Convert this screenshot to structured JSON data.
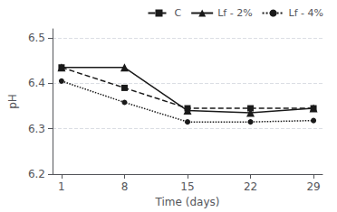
{
  "chart_data": {
    "type": "line",
    "xlabel": "Time (days)",
    "ylabel": "pH",
    "x": [
      1,
      8,
      15,
      22,
      29
    ],
    "series": [
      {
        "name": "C",
        "color": "#1a1a1a",
        "marker": "square",
        "line_style": "dashed",
        "values": [
          6.435,
          6.39,
          6.345,
          6.345,
          6.345
        ]
      },
      {
        "name": "Lf - 2%",
        "color": "#1a1a1a",
        "marker": "triangle",
        "line_style": "solid",
        "values": [
          6.435,
          6.435,
          6.34,
          6.335,
          6.345
        ]
      },
      {
        "name": "Lf - 4%",
        "color": "#1a1a1a",
        "marker": "circle",
        "line_style": "dotted",
        "values": [
          6.405,
          6.358,
          6.315,
          6.315,
          6.318
        ]
      }
    ],
    "xlim": [
      0,
      30
    ],
    "xticks": [
      1,
      8,
      15,
      22,
      29
    ],
    "ylim": [
      6.2,
      6.52
    ],
    "yticks": [
      6.2,
      6.3,
      6.4,
      6.5
    ],
    "grid": "y",
    "legend": "upper right"
  }
}
